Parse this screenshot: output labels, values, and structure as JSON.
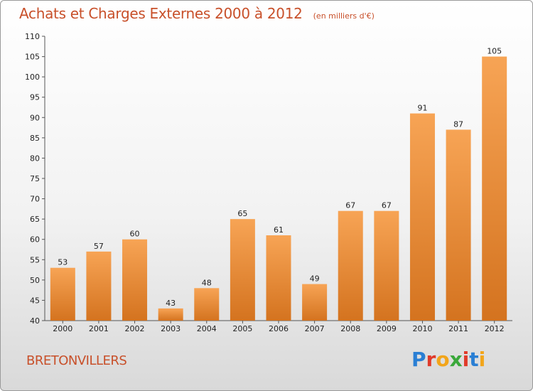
{
  "header": {
    "title": "Achats et Charges Externes 2000 à 2012",
    "subtitle": "(en milliers d'€)"
  },
  "footer": {
    "commune": "BRETONVILLERS",
    "logo_text": "Proxiti"
  },
  "colors": {
    "bar_top": "#f7a455",
    "bar_bottom": "#d4731f",
    "title": "#c8502a"
  },
  "chart_data": {
    "type": "bar",
    "title": "Achats et Charges Externes 2000 à 2012",
    "subtitle": "(en milliers d'€)",
    "categories": [
      "2000",
      "2001",
      "2002",
      "2003",
      "2004",
      "2005",
      "2006",
      "2007",
      "2008",
      "2009",
      "2010",
      "2011",
      "2012"
    ],
    "values": [
      53,
      57,
      60,
      43,
      48,
      65,
      61,
      49,
      67,
      67,
      91,
      87,
      105
    ],
    "xlabel": "",
    "ylabel": "",
    "ylim": [
      40,
      110
    ],
    "yticks": [
      40,
      45,
      50,
      55,
      60,
      65,
      70,
      75,
      80,
      85,
      90,
      95,
      100,
      105,
      110
    ],
    "grid": false,
    "data_labels": true
  }
}
